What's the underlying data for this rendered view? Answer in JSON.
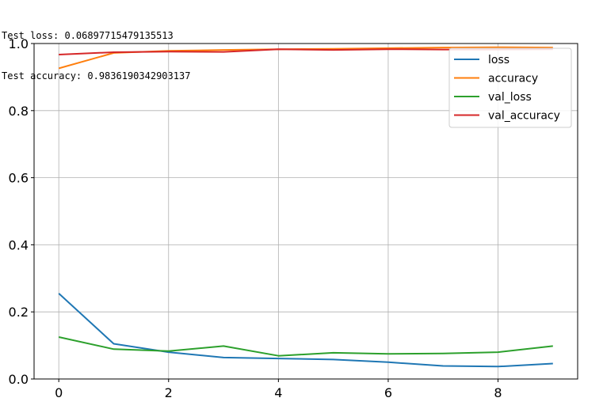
{
  "output": {
    "lines": [
      "Test loss: 0.06897715479135513",
      "Test accuracy: 0.9836190342903137"
    ]
  },
  "chart_data": {
    "type": "line",
    "title": "",
    "xlabel": "",
    "ylabel": "",
    "xlim": [
      -0.45,
      9.45
    ],
    "ylim": [
      0.0,
      1.0
    ],
    "grid": true,
    "legend_position": "top-right",
    "xticks": [
      0,
      2,
      4,
      6,
      8
    ],
    "yticks": [
      0.0,
      0.2,
      0.4,
      0.6,
      0.8,
      1.0
    ],
    "xtick_labels": [
      "0",
      "2",
      "4",
      "6",
      "8"
    ],
    "ytick_labels": [
      "0.0",
      "0.2",
      "0.4",
      "0.6",
      "0.8",
      "1.0"
    ],
    "x": [
      0,
      1,
      2,
      3,
      4,
      5,
      6,
      7,
      8,
      9
    ],
    "series": [
      {
        "name": "loss",
        "color": "#1f77b4",
        "values": [
          0.255,
          0.105,
          0.08,
          0.064,
          0.061,
          0.058,
          0.05,
          0.039,
          0.037,
          0.046
        ]
      },
      {
        "name": "accuracy",
        "color": "#ff7f0e",
        "values": [
          0.926,
          0.972,
          0.978,
          0.981,
          0.983,
          0.984,
          0.986,
          0.988,
          0.989,
          0.988
        ]
      },
      {
        "name": "val_loss",
        "color": "#2ca02c",
        "values": [
          0.125,
          0.089,
          0.083,
          0.098,
          0.069,
          0.078,
          0.075,
          0.076,
          0.08,
          0.098
        ]
      },
      {
        "name": "val_accuracy",
        "color": "#d62728",
        "values": [
          0.967,
          0.974,
          0.976,
          0.975,
          0.983,
          0.981,
          0.983,
          0.982,
          0.982,
          0.983
        ]
      }
    ]
  }
}
